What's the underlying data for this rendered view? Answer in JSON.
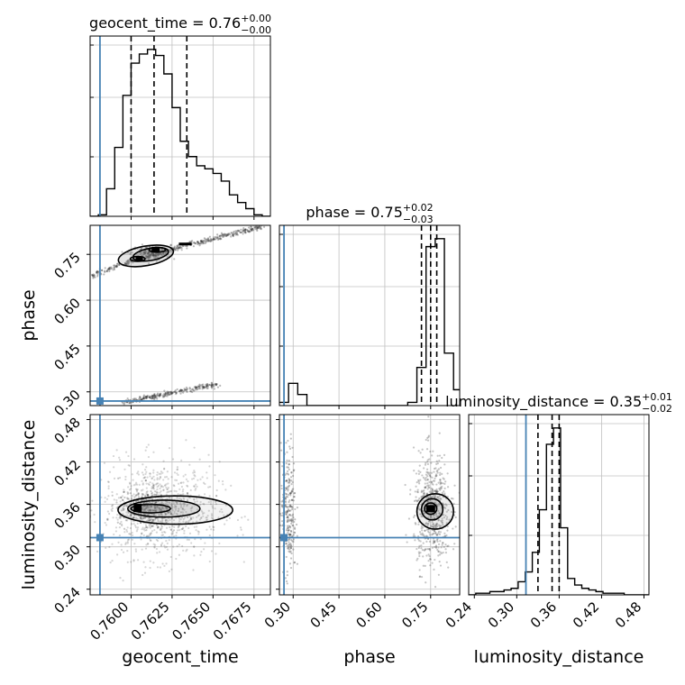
{
  "colors": {
    "truth": "#4682b4",
    "grid": "#c0c0c0",
    "ink": "#000000",
    "points": "#333333"
  },
  "chart_data": {
    "type": "corner",
    "parameters": [
      "geocent_time",
      "phase",
      "luminosity_distance"
    ],
    "titles": [
      {
        "param": "geocent_time",
        "text": "geocent_time = 0.76",
        "sup": "+0.00",
        "sub": "−0.00"
      },
      {
        "param": "phase",
        "text": "phase = 0.75",
        "sup": "+0.02",
        "sub": "−0.03"
      },
      {
        "param": "luminosity_distance",
        "text": "luminosity_distance = 0.35",
        "sup": "+0.01",
        "sub": "−0.02"
      }
    ],
    "ranges": {
      "geocent_time": [
        0.7575,
        0.7685
      ],
      "phase": [
        0.255,
        0.845
      ],
      "luminosity_distance": [
        0.232,
        0.487
      ]
    },
    "ticks": {
      "geocent_time": {
        "values": [
          0.76,
          0.7625,
          0.765,
          0.7675
        ],
        "labels": [
          "0.7600",
          "0.7625",
          "0.7650",
          "0.7675"
        ]
      },
      "phase": {
        "values": [
          0.3,
          0.45,
          0.6,
          0.75
        ],
        "labels": [
          "0.30",
          "0.45",
          "0.60",
          "0.75"
        ]
      },
      "luminosity_distance": {
        "values": [
          0.24,
          0.3,
          0.36,
          0.42,
          0.48
        ],
        "labels": [
          "0.24",
          "0.30",
          "0.36",
          "0.42",
          "0.48"
        ]
      }
    },
    "truths": {
      "geocent_time": 0.7581,
      "phase": 0.27,
      "luminosity_distance": 0.313
    },
    "quantiles": {
      "geocent_time": [
        0.76,
        0.7614,
        0.7634
      ],
      "phase": [
        0.72,
        0.75,
        0.77
      ],
      "luminosity_distance": [
        0.33,
        0.35,
        0.36
      ]
    },
    "histograms": {
      "geocent_time": {
        "edges": [
          0.7575,
          0.758,
          0.7585,
          0.759,
          0.7595,
          0.76,
          0.7605,
          0.761,
          0.7615,
          0.762,
          0.7625,
          0.763,
          0.7635,
          0.764,
          0.7645,
          0.765,
          0.7655,
          0.766,
          0.7665,
          0.767,
          0.7675,
          0.768,
          0.7685
        ],
        "counts": [
          0,
          0.01,
          0.18,
          0.45,
          0.79,
          1.0,
          1.06,
          1.09,
          1.05,
          0.93,
          0.71,
          0.49,
          0.39,
          0.33,
          0.31,
          0.28,
          0.23,
          0.14,
          0.09,
          0.05,
          0.01,
          0
        ]
      },
      "phase": {
        "edges": [
          0.255,
          0.285,
          0.315,
          0.345,
          0.375,
          0.405,
          0.435,
          0.465,
          0.495,
          0.525,
          0.555,
          0.585,
          0.615,
          0.645,
          0.675,
          0.705,
          0.735,
          0.765,
          0.795,
          0.825,
          0.845
        ],
        "counts": [
          0.02,
          0.14,
          0.07,
          0,
          0,
          0,
          0,
          0,
          0,
          0,
          0,
          0,
          0,
          0,
          0.02,
          0.24,
          1.0,
          1.05,
          0.33,
          0.1
        ]
      },
      "luminosity_distance": {
        "edges": [
          0.232,
          0.242,
          0.252,
          0.262,
          0.272,
          0.282,
          0.292,
          0.302,
          0.312,
          0.322,
          0.332,
          0.342,
          0.352,
          0.362,
          0.372,
          0.382,
          0.392,
          0.402,
          0.412,
          0.422,
          0.432,
          0.442,
          0.452,
          0.462,
          0.472,
          0.482,
          0.487
        ],
        "counts": [
          0,
          0.01,
          0.01,
          0.02,
          0.02,
          0.03,
          0.04,
          0.08,
          0.14,
          0.26,
          0.52,
          0.92,
          1.02,
          0.41,
          0.1,
          0.06,
          0.04,
          0.03,
          0.02,
          0.01,
          0.01,
          0.01,
          0,
          0,
          0,
          0
        ]
      }
    },
    "density_modes": [
      {
        "pair": [
          "geocent_time",
          "phase"
        ],
        "modes": [
          {
            "x": 0.7615,
            "y": 0.763
          },
          {
            "x": 0.7604,
            "y": 0.735
          },
          {
            "x": 0.7603,
            "y": 0.285
          }
        ]
      },
      {
        "pair": [
          "geocent_time",
          "luminosity_distance"
        ],
        "modes": [
          {
            "x": 0.7605,
            "y": 0.354
          }
        ]
      },
      {
        "pair": [
          "phase",
          "luminosity_distance"
        ],
        "modes": [
          {
            "x": 0.75,
            "y": 0.354
          },
          {
            "x": 0.29,
            "y": 0.35
          }
        ]
      }
    ],
    "grid": true
  }
}
